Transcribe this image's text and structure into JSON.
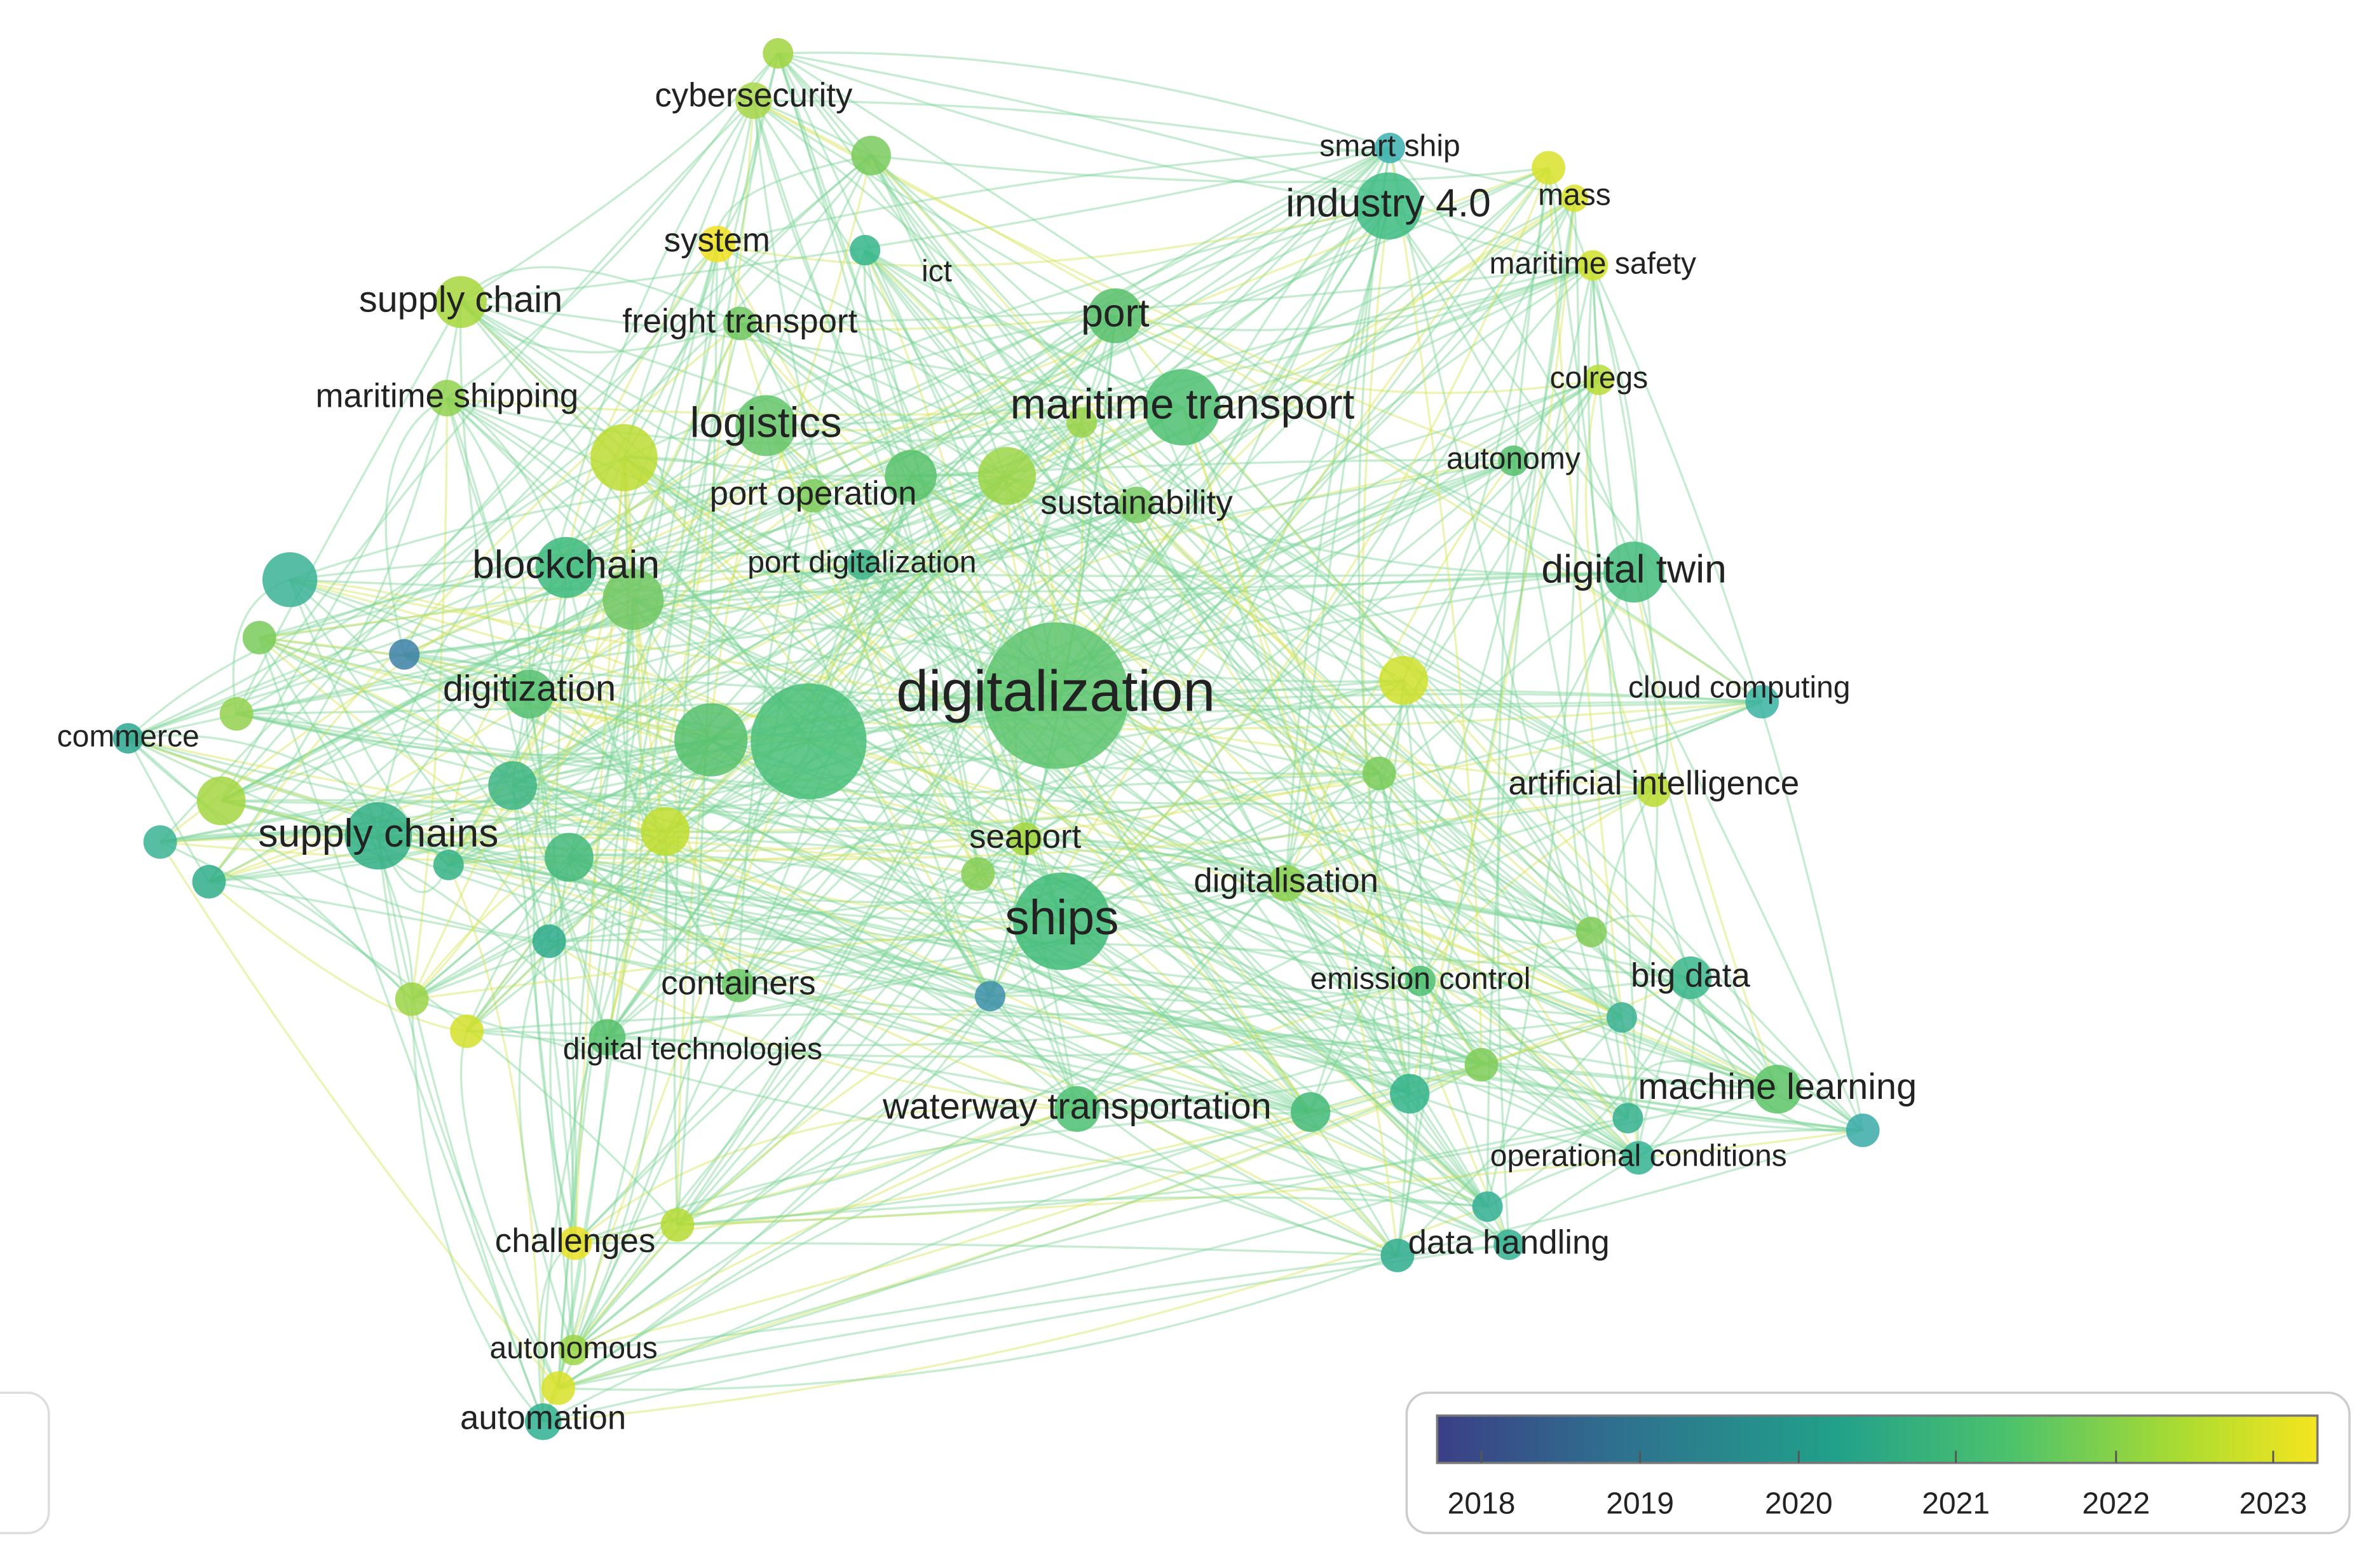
{
  "nodes": [
    {
      "label": "cybersecurity"
    },
    {
      "label": "smart ship"
    },
    {
      "label": "industry 4.0"
    },
    {
      "label": "mass"
    },
    {
      "label": "system"
    },
    {
      "label": "ict"
    },
    {
      "label": "maritime safety"
    },
    {
      "label": "supply chain"
    },
    {
      "label": "freight transport"
    },
    {
      "label": "port"
    },
    {
      "label": "colregs"
    },
    {
      "label": "maritime shipping"
    },
    {
      "label": "logistics"
    },
    {
      "label": "maritime transport"
    },
    {
      "label": "autonomy"
    },
    {
      "label": "port operation"
    },
    {
      "label": "sustainability"
    },
    {
      "label": "blockchain"
    },
    {
      "label": "port digitalization"
    },
    {
      "label": "digital twin"
    },
    {
      "label": "digitization"
    },
    {
      "label": "digitalization"
    },
    {
      "label": "cloud computing"
    },
    {
      "label": "commerce"
    },
    {
      "label": "artificial intelligence"
    },
    {
      "label": "supply chains"
    },
    {
      "label": "seaport"
    },
    {
      "label": "digitalisation"
    },
    {
      "label": "ships"
    },
    {
      "label": "emission control"
    },
    {
      "label": "big data"
    },
    {
      "label": "containers"
    },
    {
      "label": "digital technologies"
    },
    {
      "label": "machine learning"
    },
    {
      "label": "waterway transportation"
    },
    {
      "label": "operational conditions"
    },
    {
      "label": "challenges"
    },
    {
      "label": "data handling"
    },
    {
      "label": "autonomous"
    },
    {
      "label": "automation"
    }
  ],
  "legend": {
    "ticks": [
      "2018",
      "2019",
      "2020",
      "2021",
      "2022",
      "2023"
    ]
  }
}
